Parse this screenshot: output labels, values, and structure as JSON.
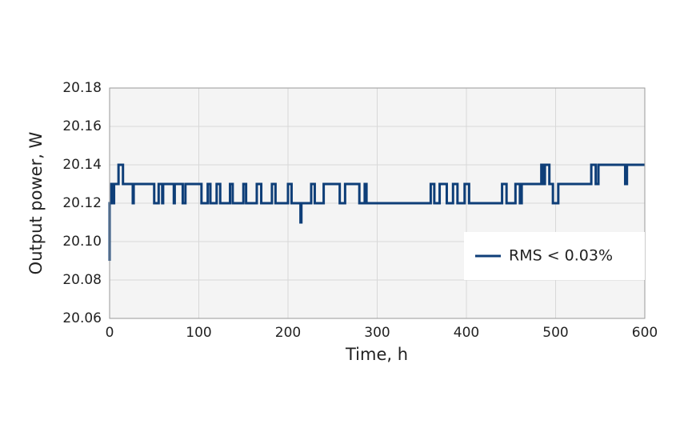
{
  "chart_data": {
    "type": "line",
    "xlabel": "Time, h",
    "ylabel": "Output power, W",
    "x": [
      0,
      0,
      2,
      2,
      4,
      4,
      5,
      5,
      10,
      10,
      15,
      15,
      26,
      26,
      27,
      27,
      50,
      50,
      55,
      55,
      59,
      59,
      60,
      60,
      72,
      72,
      73,
      73,
      82,
      82,
      85,
      85,
      103,
      103,
      110,
      110,
      113,
      113,
      120,
      120,
      124,
      124,
      135,
      135,
      138,
      138,
      150,
      150,
      153,
      153,
      165,
      165,
      170,
      170,
      182,
      182,
      186,
      186,
      200,
      200,
      204,
      204,
      214,
      214,
      215,
      215,
      226,
      226,
      230,
      230,
      240,
      240,
      258,
      258,
      264,
      264,
      280,
      280,
      286,
      286,
      288,
      288,
      360,
      360,
      364,
      364,
      370,
      370,
      378,
      378,
      385,
      385,
      390,
      390,
      398,
      398,
      403,
      403,
      440,
      440,
      445,
      445,
      455,
      455,
      460,
      460,
      462,
      462,
      484,
      484,
      486,
      486,
      488,
      488,
      493,
      493,
      497,
      497,
      503,
      503,
      540,
      540,
      545,
      545,
      548,
      548,
      578,
      578,
      580,
      580,
      600
    ],
    "series": [
      {
        "name": "RMS < 0.03%",
        "color": "#0e3e78",
        "values": [
          20.09,
          20.12,
          20.12,
          20.13,
          20.13,
          20.12,
          20.12,
          20.13,
          20.13,
          20.14,
          20.14,
          20.13,
          20.13,
          20.12,
          20.12,
          20.13,
          20.13,
          20.12,
          20.12,
          20.13,
          20.13,
          20.12,
          20.12,
          20.13,
          20.13,
          20.12,
          20.12,
          20.13,
          20.13,
          20.12,
          20.12,
          20.13,
          20.13,
          20.12,
          20.12,
          20.13,
          20.13,
          20.12,
          20.12,
          20.13,
          20.13,
          20.12,
          20.12,
          20.13,
          20.13,
          20.12,
          20.12,
          20.13,
          20.13,
          20.12,
          20.12,
          20.13,
          20.13,
          20.12,
          20.12,
          20.13,
          20.13,
          20.12,
          20.12,
          20.13,
          20.13,
          20.12,
          20.12,
          20.11,
          20.11,
          20.12,
          20.12,
          20.13,
          20.13,
          20.12,
          20.12,
          20.13,
          20.13,
          20.12,
          20.12,
          20.13,
          20.13,
          20.12,
          20.12,
          20.13,
          20.13,
          20.12,
          20.12,
          20.13,
          20.13,
          20.12,
          20.12,
          20.13,
          20.13,
          20.12,
          20.12,
          20.13,
          20.13,
          20.12,
          20.12,
          20.13,
          20.13,
          20.12,
          20.12,
          20.13,
          20.13,
          20.12,
          20.12,
          20.13,
          20.13,
          20.12,
          20.12,
          20.13,
          20.13,
          20.14,
          20.14,
          20.13,
          20.13,
          20.14,
          20.14,
          20.13,
          20.13,
          20.12,
          20.12,
          20.13,
          20.13,
          20.14,
          20.14,
          20.13,
          20.13,
          20.14,
          20.14,
          20.13,
          20.13,
          20.14,
          20.14
        ]
      }
    ],
    "xlim": [
      0,
      600
    ],
    "xticks": [
      0,
      100,
      200,
      300,
      400,
      500,
      600
    ],
    "ylim": [
      20.06,
      20.18
    ],
    "yticks": [
      20.06,
      20.08,
      {
        "value": 20.1,
        "label": "20.10"
      },
      20.12,
      20.14,
      20.16,
      20.18
    ],
    "grid": true,
    "legend": "lower right"
  }
}
